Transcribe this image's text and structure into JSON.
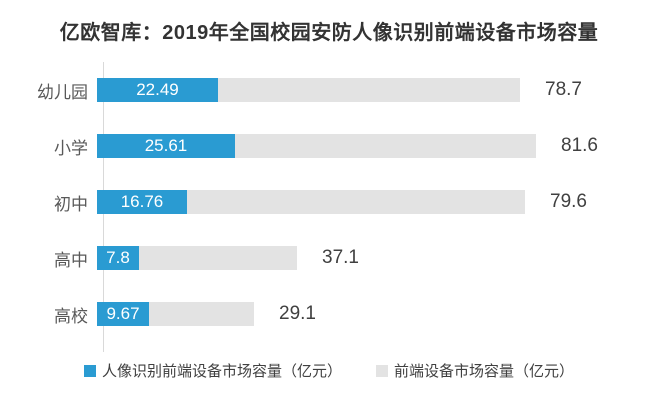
{
  "chart_data": {
    "type": "bar",
    "orientation": "horizontal",
    "title": "亿欧智库：2019年全国校园安防人像识别前端设备市场容量",
    "categories": [
      "幼儿园",
      "小学",
      "初中",
      "高中",
      "高校"
    ],
    "series": [
      {
        "name": "人像识别前端设备市场容量（亿元）",
        "color": "#2a9bd2",
        "values": [
          22.49,
          25.61,
          16.76,
          7.8,
          9.67
        ],
        "label_position": "inside",
        "label_color": "#ffffff"
      },
      {
        "name": "前端设备市场容量（亿元）",
        "color": "#e3e3e3",
        "values": [
          78.7,
          81.6,
          79.6,
          37.1,
          29.1
        ],
        "label_position": "outside-right",
        "label_color": "#404040"
      }
    ],
    "xlim": [
      0,
      81.6
    ],
    "grid": false,
    "legend_position": "bottom",
    "value_unit": "亿元"
  }
}
